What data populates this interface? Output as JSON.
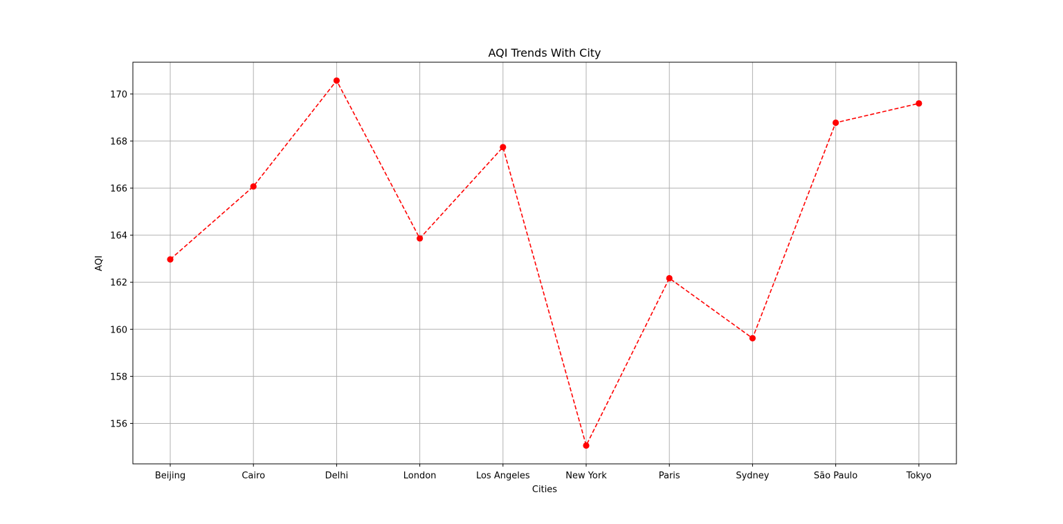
{
  "chart_data": {
    "type": "line",
    "title": "AQI Trends With City",
    "xlabel": "Cities",
    "ylabel": "AQI",
    "categories": [
      "Beijing",
      "Cairo",
      "Delhi",
      "London",
      "Los Angeles",
      "New York",
      "Paris",
      "Sydney",
      "São Paulo",
      "Tokyo"
    ],
    "series": [
      {
        "values": [
          162.97,
          166.07,
          170.57,
          163.86,
          167.74,
          155.06,
          162.17,
          159.62,
          168.78,
          169.6
        ]
      }
    ],
    "yticks": [
      156,
      158,
      160,
      162,
      164,
      166,
      168,
      170
    ],
    "ylim": [
      154.28,
      171.35
    ],
    "grid": true,
    "line_style": "dashed",
    "marker": "circle",
    "colors": {
      "line": "#ff0000",
      "grid": "#b0b0b0",
      "axis": "#000000"
    }
  }
}
